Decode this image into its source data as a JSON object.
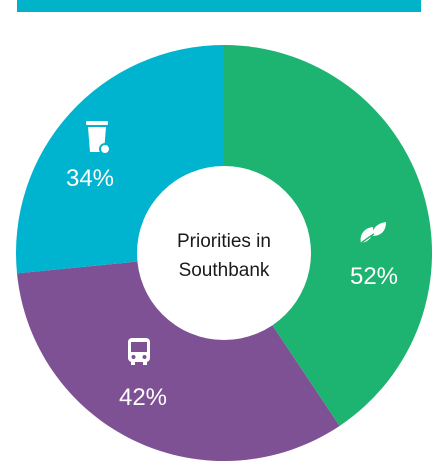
{
  "colors": {
    "top_bar": "#00b3c9",
    "background": "#ffffff",
    "center_circle": "#ffffff"
  },
  "chart_data": {
    "type": "pie",
    "variant": "donut",
    "center_label": [
      "Priorities in",
      "Southbank"
    ],
    "slices": [
      {
        "label": "52%",
        "value": 52,
        "icon": "leaf-icon",
        "color": "#1db371"
      },
      {
        "label": "42%",
        "value": 42,
        "icon": "bus-icon",
        "color": "#7e5194"
      },
      {
        "label": "34%",
        "value": 34,
        "icon": "trash-bin-icon",
        "color": "#00b3ce"
      }
    ],
    "legend": "none"
  }
}
